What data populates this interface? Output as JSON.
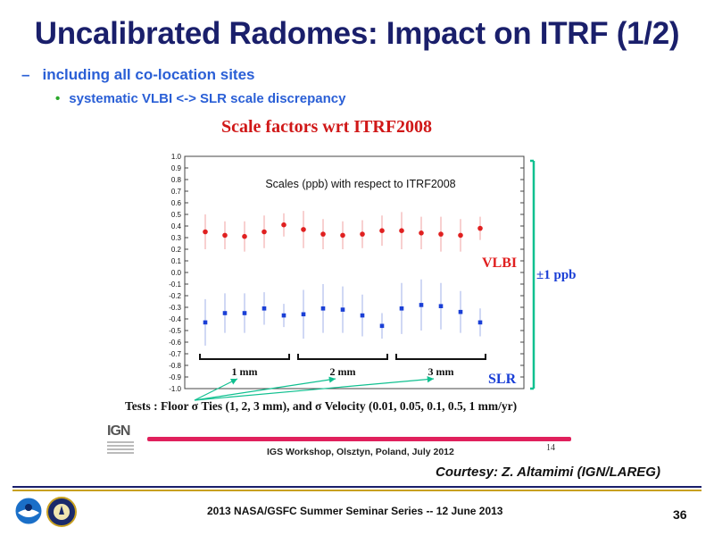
{
  "slide": {
    "title": "Uncalibrated Radomes: Impact on ITRF (1/2)",
    "bullet1": "including all co-location sites",
    "bullet2": "systematic VLBI <-> SLR scale discrepancy",
    "figure_title": "Scale factors wrt ITRF2008",
    "tests_caption": "Tests : Floor σ Ties (1, 2, 3 mm), and σ Velocity (0.01, 0.05, 0.1, 0.5, 1 mm/yr)",
    "logo_text": "IGN",
    "workshop_text": "IGS Workshop, Olsztyn, Poland, July 2012",
    "inner_page": "14",
    "courtesy": "Courtesy: Z. Altamimi (IGN/LAREG)",
    "footer": "2013 NASA/GSFC Summer Seminar Series -- 12 June 2013",
    "page_number": "36"
  },
  "chart_data": {
    "type": "scatter",
    "title": "Scales (ppb) with respect to ITRF2008",
    "ylim": [
      -1.0,
      1.0
    ],
    "yticks": [
      "1.0",
      "0.9",
      "0.8",
      "0.7",
      "0.6",
      "0.5",
      "0.4",
      "0.3",
      "0.2",
      "0.1",
      "0.0",
      "-0.1",
      "-0.2",
      "-0.3",
      "-0.4",
      "-0.5",
      "-0.6",
      "-0.7",
      "-0.8",
      "-0.9",
      "-1.0"
    ],
    "x": [
      1,
      2,
      3,
      4,
      5,
      6,
      7,
      8,
      9,
      10,
      11,
      12,
      13,
      14,
      15
    ],
    "series": [
      {
        "name": "VLBI",
        "color": "#e02020",
        "marker": "circle",
        "values": [
          0.35,
          0.32,
          0.31,
          0.35,
          0.41,
          0.37,
          0.33,
          0.32,
          0.33,
          0.36,
          0.36,
          0.34,
          0.33,
          0.32,
          0.38
        ],
        "errors": [
          0.15,
          0.12,
          0.13,
          0.14,
          0.1,
          0.16,
          0.13,
          0.12,
          0.12,
          0.13,
          0.16,
          0.14,
          0.15,
          0.14,
          0.1
        ]
      },
      {
        "name": "SLR",
        "color": "#1a3fd6",
        "marker": "square",
        "values": [
          -0.43,
          -0.35,
          -0.35,
          -0.31,
          -0.37,
          -0.36,
          -0.31,
          -0.32,
          -0.37,
          -0.46,
          -0.31,
          -0.28,
          -0.29,
          -0.34,
          -0.43
        ],
        "errors": [
          0.2,
          0.17,
          0.17,
          0.14,
          0.1,
          0.21,
          0.21,
          0.2,
          0.18,
          0.11,
          0.22,
          0.22,
          0.2,
          0.18,
          0.12
        ]
      }
    ],
    "groups": [
      {
        "label": "1 mm",
        "from": 1,
        "to": 5
      },
      {
        "label": "2 mm",
        "from": 6,
        "to": 10
      },
      {
        "label": "3 mm",
        "from": 11,
        "to": 15
      }
    ],
    "vlbi_label": "VLBI",
    "slr_label": "SLR",
    "bracket_label": "±1 ppb",
    "bracket_color": "#10c090",
    "arrow_color": "#10c090"
  }
}
